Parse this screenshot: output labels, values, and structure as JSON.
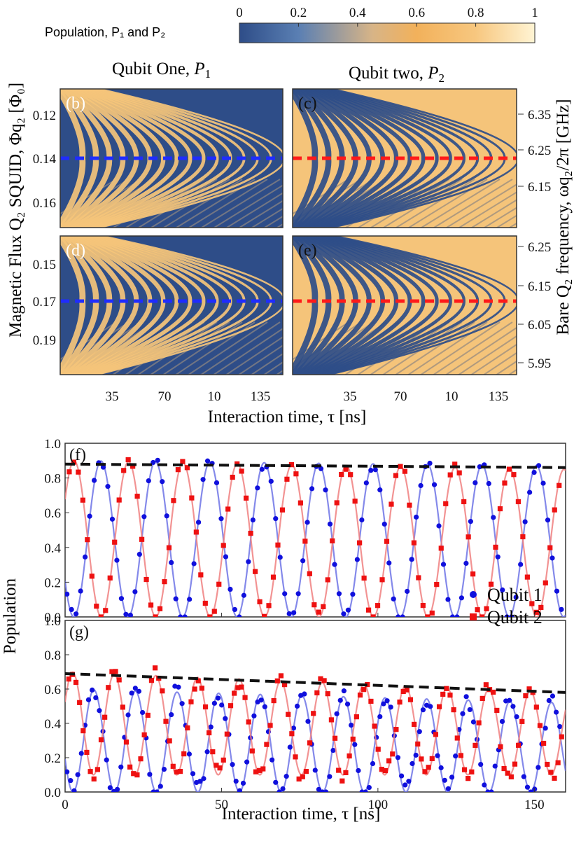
{
  "colorbar": {
    "label": "Population, P₁ and P₂",
    "ticks": [
      "0",
      "0.2",
      "0.4",
      "0.6",
      "0.8",
      "1"
    ],
    "colors": [
      "#2e4d88",
      "#5a7fb3",
      "#d7b487",
      "#f2b15b",
      "#f7c77f",
      "#fff4d4"
    ]
  },
  "heatmaps": {
    "titles": {
      "left": "Qubit One, ",
      "left_var": "P",
      "left_sub": "1",
      "right": "Qubit two, ",
      "right_var": "P",
      "right_sub": "2"
    },
    "panel_labels": [
      "(b)",
      "(c)",
      "(d)",
      "(e)"
    ],
    "left_axis_label": "Magnetic Flux Q₂ SQUID, Φq₂ [Φ₀]",
    "right_axis_label": "Bare Q₂ frequency, ωq₂/2π [GHz]",
    "top_flux_ticks": [
      "0.12",
      "0.14",
      "0.16"
    ],
    "bottom_flux_ticks": [
      "0.15",
      "0.17",
      "0.19"
    ],
    "top_freq_ticks": [
      "6.35",
      "6.25",
      "6.15"
    ],
    "bottom_freq_ticks": [
      "6.25",
      "6.15",
      "6.05",
      "5.95"
    ],
    "time_ticks": [
      "35",
      "70",
      "10",
      "135"
    ],
    "xlabel": "Interaction time, τ [ns]",
    "colors": {
      "low": "#2e4d88",
      "high": "#f5c47a",
      "marker_left": "#1f2cff",
      "marker_right": "#ff1a1a"
    }
  },
  "chart_data": [
    {
      "type": "line",
      "panel": "(f)",
      "x_range": [
        0,
        160
      ],
      "ylim": [
        0,
        1.0
      ],
      "yticks": [
        "0.0",
        "0.2",
        "0.4",
        "0.6",
        "0.8",
        "1.0"
      ],
      "series": [
        {
          "name": "Qubit 1",
          "marker": "circle",
          "color": "#1010dd",
          "fit_color": "#6f74e6",
          "period_ns": 17.4,
          "amplitude_start": 0.9,
          "amplitude_end": 0.87,
          "offset": 0.0,
          "phase": "starts at 0.1"
        },
        {
          "name": "Qubit 2",
          "marker": "square",
          "color": "#ee1111",
          "fit_color": "#f08080",
          "period_ns": 17.4,
          "amplitude_start": 0.9,
          "amplitude_end": 0.85,
          "offset": 0.0,
          "phase": "starts at 0.8"
        }
      ],
      "envelope": {
        "x": [
          0,
          160
        ],
        "y": [
          0.88,
          0.86
        ]
      }
    },
    {
      "type": "line",
      "panel": "(g)",
      "x_range": [
        0,
        160
      ],
      "ylim": [
        0,
        1.0
      ],
      "xticks": [
        "0",
        "50",
        "100",
        "150"
      ],
      "yticks": [
        "0.0",
        "0.2",
        "0.4",
        "0.6",
        "0.8",
        "1.0"
      ],
      "xlabel": "Interaction time, τ [ns]",
      "ylabel": "Population",
      "legend": {
        "placement": "top-right"
      },
      "series": [
        {
          "name": "Qubit 1",
          "marker": "circle",
          "color": "#1010dd",
          "fit_color": "#6f74e6",
          "period_ns": 13.3,
          "amplitude_start": 0.6,
          "amplitude_end": 0.52,
          "offset": 0.0
        },
        {
          "name": "Qubit 2",
          "marker": "square",
          "color": "#ee1111",
          "fit_color": "#f08080",
          "period_ns": 13.3,
          "amplitude_start": 0.7,
          "amplitude_end": 0.58,
          "offset": 0.1
        }
      ],
      "envelope": {
        "x": [
          0,
          160
        ],
        "y": [
          0.69,
          0.58
        ]
      }
    }
  ]
}
